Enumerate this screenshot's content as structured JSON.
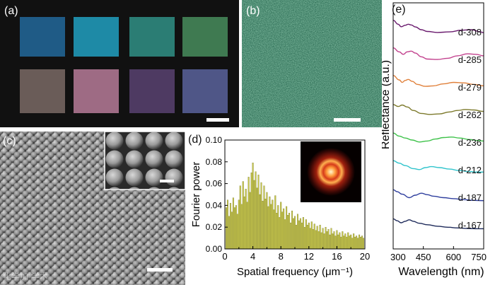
{
  "panels": {
    "a": {
      "label": "(a)",
      "swatches": [
        "#1f5b86",
        "#1e8aa6",
        "#2b7d74",
        "#3f7a51",
        "#6a5c58",
        "#9e6b84",
        "#4e3a62",
        "#4f5687"
      ]
    },
    "b": {
      "label": "(b)"
    },
    "c": {
      "label": "(c)"
    },
    "d": {
      "label": "(d)"
    },
    "e": {
      "label": "(e)"
    }
  },
  "watermark": "化学加 学术",
  "chart_data": [
    {
      "type": "bar",
      "panel": "d",
      "xlabel": "Spatial frequency (μm⁻¹)",
      "ylabel": "Fourier power",
      "xlim": [
        0,
        20
      ],
      "ylim": [
        0,
        0.1
      ],
      "xticks": [
        0,
        4,
        8,
        12,
        16,
        20
      ],
      "yticks": [
        "0.00",
        "0.02",
        "0.04",
        "0.06",
        "0.08",
        "0.10"
      ],
      "bar_color": "#c8c84a",
      "x": [
        0.2,
        0.4,
        0.6,
        0.8,
        1.0,
        1.2,
        1.4,
        1.6,
        1.8,
        2.0,
        2.2,
        2.4,
        2.6,
        2.8,
        3.0,
        3.2,
        3.4,
        3.6,
        3.8,
        4.0,
        4.2,
        4.4,
        4.6,
        4.8,
        5.0,
        5.2,
        5.4,
        5.6,
        5.8,
        6.0,
        6.2,
        6.4,
        6.6,
        6.8,
        7.0,
        7.2,
        7.4,
        7.6,
        7.8,
        8.0,
        8.2,
        8.4,
        8.6,
        8.8,
        9.0,
        9.2,
        9.4,
        9.6,
        9.8,
        10.0,
        10.2,
        10.4,
        10.6,
        10.8,
        11.0,
        11.2,
        11.4,
        11.6,
        11.8,
        12.0,
        12.2,
        12.4,
        12.6,
        12.8,
        13.0,
        13.2,
        13.4,
        13.6,
        13.8,
        14.0,
        14.2,
        14.4,
        14.6,
        14.8,
        15.0,
        15.2,
        15.4,
        15.6,
        15.8,
        16.0,
        16.2,
        16.4,
        16.6,
        16.8,
        17.0,
        17.2,
        17.4,
        17.6,
        17.8,
        18.0,
        18.2,
        18.4,
        18.6,
        18.8,
        19.0,
        19.2,
        19.4,
        19.6,
        19.8
      ],
      "values": [
        0.038,
        0.045,
        0.03,
        0.042,
        0.034,
        0.047,
        0.038,
        0.04,
        0.032,
        0.045,
        0.058,
        0.041,
        0.062,
        0.048,
        0.055,
        0.043,
        0.066,
        0.052,
        0.07,
        0.079,
        0.063,
        0.071,
        0.056,
        0.068,
        0.05,
        0.061,
        0.044,
        0.058,
        0.046,
        0.052,
        0.039,
        0.048,
        0.041,
        0.045,
        0.036,
        0.049,
        0.033,
        0.04,
        0.029,
        0.043,
        0.034,
        0.037,
        0.027,
        0.039,
        0.031,
        0.033,
        0.024,
        0.035,
        0.028,
        0.03,
        0.022,
        0.032,
        0.026,
        0.028,
        0.024,
        0.029,
        0.02,
        0.027,
        0.022,
        0.024,
        0.019,
        0.025,
        0.018,
        0.023,
        0.017,
        0.021,
        0.016,
        0.022,
        0.015,
        0.019,
        0.014,
        0.02,
        0.016,
        0.018,
        0.013,
        0.019,
        0.014,
        0.016,
        0.012,
        0.017,
        0.013,
        0.015,
        0.011,
        0.016,
        0.012,
        0.014,
        0.011,
        0.015,
        0.012,
        0.013,
        0.01,
        0.014,
        0.011,
        0.012,
        0.01,
        0.013,
        0.011,
        0.012,
        0.01
      ]
    },
    {
      "type": "line",
      "panel": "e",
      "xlabel": "Wavelength (nm)",
      "ylabel": "Reflectance (a.u.)",
      "xlim": [
        300,
        750
      ],
      "xticks": [
        300,
        450,
        600,
        750
      ],
      "series": [
        {
          "name": "d-308",
          "color": "#6a1b6e",
          "points": [
            [
              300,
              0.95
            ],
            [
              325,
              0.55
            ],
            [
              340,
              0.3
            ],
            [
              360,
              0.45
            ],
            [
              375,
              0.55
            ],
            [
              390,
              0.48
            ],
            [
              410,
              0.28
            ],
            [
              440,
              0.0
            ],
            [
              470,
              -0.18
            ],
            [
              520,
              -0.28
            ],
            [
              580,
              -0.22
            ],
            [
              640,
              -0.05
            ],
            [
              690,
              0.0
            ],
            [
              730,
              -0.2
            ],
            [
              750,
              -0.3
            ]
          ]
        },
        {
          "name": "d-285",
          "color": "#c2408d",
          "points": [
            [
              300,
              0.95
            ],
            [
              330,
              0.55
            ],
            [
              350,
              0.3
            ],
            [
              370,
              0.55
            ],
            [
              390,
              0.62
            ],
            [
              410,
              0.42
            ],
            [
              440,
              0.05
            ],
            [
              470,
              -0.18
            ],
            [
              520,
              -0.22
            ],
            [
              570,
              -0.1
            ],
            [
              620,
              0.15
            ],
            [
              670,
              0.35
            ],
            [
              710,
              0.3
            ],
            [
              750,
              0.15
            ]
          ]
        },
        {
          "name": "d-279",
          "color": "#e0803a",
          "points": [
            [
              300,
              0.95
            ],
            [
              330,
              0.5
            ],
            [
              345,
              0.25
            ],
            [
              360,
              0.45
            ],
            [
              375,
              0.55
            ],
            [
              395,
              0.35
            ],
            [
              420,
              0.05
            ],
            [
              460,
              -0.15
            ],
            [
              500,
              -0.1
            ],
            [
              550,
              0.1
            ],
            [
              600,
              0.25
            ],
            [
              650,
              0.2
            ],
            [
              700,
              0.05
            ],
            [
              750,
              -0.1
            ]
          ]
        },
        {
          "name": "d-262",
          "color": "#7d7a2c",
          "points": [
            [
              300,
              0.8
            ],
            [
              325,
              0.6
            ],
            [
              345,
              0.75
            ],
            [
              370,
              0.55
            ],
            [
              400,
              0.2
            ],
            [
              440,
              -0.1
            ],
            [
              480,
              -0.2
            ],
            [
              530,
              -0.15
            ],
            [
              580,
              0.05
            ],
            [
              620,
              0.2
            ],
            [
              660,
              0.3
            ],
            [
              700,
              0.25
            ],
            [
              750,
              0.1
            ]
          ]
        },
        {
          "name": "d-236",
          "color": "#3ec24a",
          "points": [
            [
              300,
              0.7
            ],
            [
              330,
              0.4
            ],
            [
              360,
              0.2
            ],
            [
              395,
              0.0
            ],
            [
              430,
              -0.2
            ],
            [
              470,
              -0.1
            ],
            [
              510,
              0.1
            ],
            [
              550,
              0.25
            ],
            [
              590,
              0.3
            ],
            [
              630,
              0.2
            ],
            [
              680,
              0.05
            ],
            [
              720,
              -0.05
            ],
            [
              750,
              -0.1
            ]
          ]
        },
        {
          "name": "d-212",
          "color": "#30c4cc",
          "points": [
            [
              300,
              0.7
            ],
            [
              330,
              0.45
            ],
            [
              360,
              0.2
            ],
            [
              400,
              -0.1
            ],
            [
              430,
              -0.2
            ],
            [
              460,
              0.0
            ],
            [
              490,
              0.1
            ],
            [
              530,
              0.0
            ],
            [
              580,
              -0.15
            ],
            [
              630,
              -0.3
            ],
            [
              680,
              -0.4
            ],
            [
              720,
              -0.45
            ],
            [
              750,
              -0.45
            ]
          ]
        },
        {
          "name": "d-187",
          "color": "#2f3f9e",
          "points": [
            [
              300,
              0.55
            ],
            [
              320,
              0.35
            ],
            [
              345,
              0.1
            ],
            [
              380,
              -0.25
            ],
            [
              410,
              0.0
            ],
            [
              440,
              0.2
            ],
            [
              470,
              0.05
            ],
            [
              500,
              -0.1
            ],
            [
              550,
              -0.25
            ],
            [
              600,
              -0.35
            ],
            [
              650,
              -0.45
            ],
            [
              700,
              -0.52
            ],
            [
              750,
              -0.55
            ]
          ]
        },
        {
          "name": "d-167",
          "color": "#1e2a5a",
          "points": [
            [
              300,
              0.4
            ],
            [
              320,
              0.2
            ],
            [
              340,
              0.0
            ],
            [
              360,
              0.15
            ],
            [
              380,
              0.3
            ],
            [
              400,
              0.15
            ],
            [
              430,
              -0.05
            ],
            [
              470,
              -0.2
            ],
            [
              520,
              -0.35
            ],
            [
              570,
              -0.45
            ],
            [
              620,
              -0.52
            ],
            [
              670,
              -0.58
            ],
            [
              720,
              -0.6
            ],
            [
              750,
              -0.6
            ]
          ]
        }
      ]
    }
  ]
}
